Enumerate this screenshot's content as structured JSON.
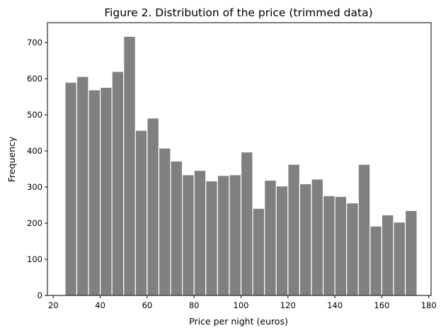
{
  "chart_data": {
    "type": "bar",
    "title": "Figure 2. Distribution of the price (trimmed data)",
    "xlabel": "Price per night (euros)",
    "ylabel": "Frequency",
    "xlim": [
      17.5,
      181
    ],
    "ylim": [
      0,
      755
    ],
    "x_ticks": [
      20,
      40,
      60,
      80,
      100,
      120,
      140,
      160,
      180
    ],
    "y_ticks": [
      0,
      100,
      200,
      300,
      400,
      500,
      600,
      700
    ],
    "bin_start": 25,
    "bin_width": 5,
    "bins": [
      {
        "from": 25,
        "to": 30,
        "value": 590
      },
      {
        "from": 30,
        "to": 35,
        "value": 606
      },
      {
        "from": 35,
        "to": 40,
        "value": 569
      },
      {
        "from": 40,
        "to": 45,
        "value": 576
      },
      {
        "from": 45,
        "to": 50,
        "value": 620
      },
      {
        "from": 50,
        "to": 55,
        "value": 717
      },
      {
        "from": 55,
        "to": 60,
        "value": 457
      },
      {
        "from": 60,
        "to": 65,
        "value": 491
      },
      {
        "from": 65,
        "to": 70,
        "value": 408
      },
      {
        "from": 70,
        "to": 75,
        "value": 372
      },
      {
        "from": 75,
        "to": 80,
        "value": 334
      },
      {
        "from": 80,
        "to": 85,
        "value": 346
      },
      {
        "from": 85,
        "to": 90,
        "value": 317
      },
      {
        "from": 90,
        "to": 95,
        "value": 332
      },
      {
        "from": 95,
        "to": 100,
        "value": 334
      },
      {
        "from": 100,
        "to": 105,
        "value": 397
      },
      {
        "from": 105,
        "to": 110,
        "value": 241
      },
      {
        "from": 110,
        "to": 115,
        "value": 319
      },
      {
        "from": 115,
        "to": 120,
        "value": 303
      },
      {
        "from": 120,
        "to": 125,
        "value": 363
      },
      {
        "from": 125,
        "to": 130,
        "value": 309
      },
      {
        "from": 130,
        "to": 135,
        "value": 322
      },
      {
        "from": 135,
        "to": 140,
        "value": 276
      },
      {
        "from": 140,
        "to": 145,
        "value": 274
      },
      {
        "from": 145,
        "to": 150,
        "value": 256
      },
      {
        "from": 150,
        "to": 155,
        "value": 363
      },
      {
        "from": 155,
        "to": 160,
        "value": 192
      },
      {
        "from": 160,
        "to": 165,
        "value": 223
      },
      {
        "from": 165,
        "to": 170,
        "value": 203
      },
      {
        "from": 170,
        "to": 175,
        "value": 235
      }
    ],
    "bar_color": "#808080",
    "edge_color": "#ffffff",
    "grid": false,
    "legend": "none"
  }
}
